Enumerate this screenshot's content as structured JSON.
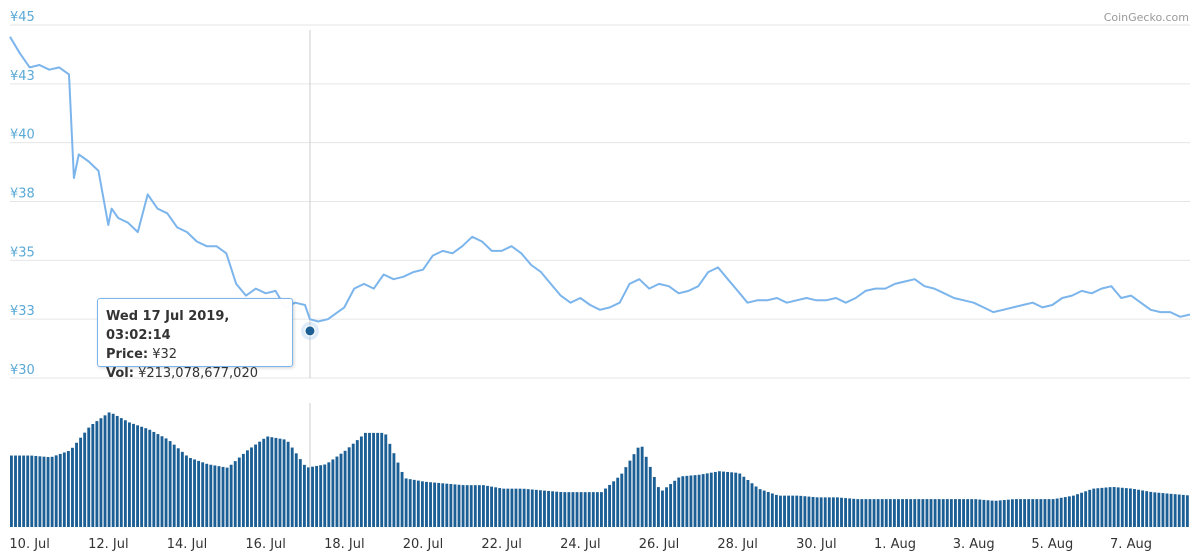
{
  "credit": "CoinGecko.com",
  "tooltip": {
    "date": "Wed 17 Jul 2019, 03:02:14",
    "price_label": "Price:",
    "price_value": "¥32",
    "vol_label": "Vol:",
    "vol_value": "¥213,078,677,020"
  },
  "colors": {
    "price_line": "#7cb5ec",
    "volume_bars": "#1c5f95",
    "tick_text": "#5aa9d6",
    "grid": "#e6e6e6",
    "marker": "#1c5f95"
  },
  "chart_data": [
    {
      "type": "line",
      "title": "",
      "xlabel": "",
      "ylabel": "",
      "x_range": [
        "2019-07-09",
        "2019-08-08"
      ],
      "ylim": [
        30,
        45
      ],
      "y_ticks": [
        "¥30",
        "¥33",
        "¥35",
        "¥38",
        "¥40",
        "¥43",
        "¥45"
      ],
      "y_tick_values": [
        30,
        32.5,
        35,
        37.5,
        40,
        42.5,
        45
      ],
      "x_ticks": [
        "10. Jul",
        "12. Jul",
        "14. Jul",
        "16. Jul",
        "18. Jul",
        "20. Jul",
        "22. Jul",
        "24. Jul",
        "26. Jul",
        "28. Jul",
        "30. Jul",
        "1. Aug",
        "3. Aug",
        "5. Aug",
        "7. Aug"
      ],
      "x_tick_dates": [
        "2019-07-10",
        "2019-07-12",
        "2019-07-14",
        "2019-07-16",
        "2019-07-18",
        "2019-07-20",
        "2019-07-22",
        "2019-07-24",
        "2019-07-26",
        "2019-07-28",
        "2019-07-30",
        "2019-08-01",
        "2019-08-03",
        "2019-08-05",
        "2019-08-07"
      ],
      "grid": true,
      "legend": "none",
      "series": [
        {
          "x": [
            "2019-07-09 12:00",
            "2019-07-09 18:00",
            "2019-07-10 00:00",
            "2019-07-10 06:00",
            "2019-07-10 12:00",
            "2019-07-10 18:00",
            "2019-07-11 00:00",
            "2019-07-11 03:00",
            "2019-07-11 06:00",
            "2019-07-11 12:00",
            "2019-07-11 18:00",
            "2019-07-12 00:00",
            "2019-07-12 02:00",
            "2019-07-12 06:00",
            "2019-07-12 12:00",
            "2019-07-12 18:00",
            "2019-07-13 00:00",
            "2019-07-13 06:00",
            "2019-07-13 12:00",
            "2019-07-13 18:00",
            "2019-07-14 00:00",
            "2019-07-14 06:00",
            "2019-07-14 12:00",
            "2019-07-14 18:00",
            "2019-07-15 00:00",
            "2019-07-15 06:00",
            "2019-07-15 12:00",
            "2019-07-15 18:00",
            "2019-07-16 00:00",
            "2019-07-16 06:00",
            "2019-07-16 12:00",
            "2019-07-16 18:00",
            "2019-07-17 00:00",
            "2019-07-17 03:00",
            "2019-07-17 08:00",
            "2019-07-17 14:00",
            "2019-07-17 20:00",
            "2019-07-18 00:00",
            "2019-07-18 06:00",
            "2019-07-18 12:00",
            "2019-07-18 18:00",
            "2019-07-19 00:00",
            "2019-07-19 06:00",
            "2019-07-19 12:00",
            "2019-07-19 18:00",
            "2019-07-20 00:00",
            "2019-07-20 06:00",
            "2019-07-20 12:00",
            "2019-07-20 18:00",
            "2019-07-21 00:00",
            "2019-07-21 06:00",
            "2019-07-21 12:00",
            "2019-07-21 18:00",
            "2019-07-22 00:00",
            "2019-07-22 06:00",
            "2019-07-22 12:00",
            "2019-07-22 18:00",
            "2019-07-23 00:00",
            "2019-07-23 06:00",
            "2019-07-23 12:00",
            "2019-07-23 18:00",
            "2019-07-24 00:00",
            "2019-07-24 06:00",
            "2019-07-24 12:00",
            "2019-07-24 18:00",
            "2019-07-25 00:00",
            "2019-07-25 06:00",
            "2019-07-25 12:00",
            "2019-07-25 18:00",
            "2019-07-26 00:00",
            "2019-07-26 06:00",
            "2019-07-26 12:00",
            "2019-07-26 18:00",
            "2019-07-27 00:00",
            "2019-07-27 06:00",
            "2019-07-27 12:00",
            "2019-07-27 18:00",
            "2019-07-28 00:00",
            "2019-07-28 06:00",
            "2019-07-28 12:00",
            "2019-07-28 18:00",
            "2019-07-29 00:00",
            "2019-07-29 06:00",
            "2019-07-29 12:00",
            "2019-07-29 18:00",
            "2019-07-30 00:00",
            "2019-07-30 06:00",
            "2019-07-30 12:00",
            "2019-07-30 18:00",
            "2019-07-31 00:00",
            "2019-07-31 06:00",
            "2019-07-31 12:00",
            "2019-07-31 18:00",
            "2019-08-01 00:00",
            "2019-08-01 06:00",
            "2019-08-01 12:00",
            "2019-08-01 18:00",
            "2019-08-02 00:00",
            "2019-08-02 06:00",
            "2019-08-02 12:00",
            "2019-08-02 18:00",
            "2019-08-03 00:00",
            "2019-08-03 06:00",
            "2019-08-03 12:00",
            "2019-08-03 18:00",
            "2019-08-04 00:00",
            "2019-08-04 06:00",
            "2019-08-04 12:00",
            "2019-08-04 18:00",
            "2019-08-05 00:00",
            "2019-08-05 06:00",
            "2019-08-05 12:00",
            "2019-08-05 18:00",
            "2019-08-06 00:00",
            "2019-08-06 06:00",
            "2019-08-06 12:00",
            "2019-08-06 18:00",
            "2019-08-07 00:00",
            "2019-08-07 06:00",
            "2019-08-07 12:00",
            "2019-08-07 18:00",
            "2019-08-08 00:00",
            "2019-08-08 06:00",
            "2019-08-08 12:00"
          ],
          "y": [
            44.5,
            43.8,
            43.2,
            43.3,
            43.1,
            43.2,
            42.9,
            38.5,
            39.5,
            39.2,
            38.8,
            36.5,
            37.2,
            36.8,
            36.6,
            36.2,
            37.8,
            37.2,
            37.0,
            36.4,
            36.2,
            35.8,
            35.6,
            35.6,
            35.3,
            34.0,
            33.5,
            33.8,
            33.6,
            33.7,
            33.0,
            33.2,
            33.1,
            32.5,
            32.4,
            32.5,
            32.8,
            33.0,
            33.8,
            34.0,
            33.8,
            34.4,
            34.2,
            34.3,
            34.5,
            34.6,
            35.2,
            35.4,
            35.3,
            35.6,
            36.0,
            35.8,
            35.4,
            35.4,
            35.6,
            35.3,
            34.8,
            34.5,
            34.0,
            33.5,
            33.2,
            33.4,
            33.1,
            32.9,
            33.0,
            33.2,
            34.0,
            34.2,
            33.8,
            34.0,
            33.9,
            33.6,
            33.7,
            33.9,
            34.5,
            34.7,
            34.2,
            33.7,
            33.2,
            33.3,
            33.3,
            33.4,
            33.2,
            33.3,
            33.4,
            33.3,
            33.3,
            33.4,
            33.2,
            33.4,
            33.7,
            33.8,
            33.8,
            34.0,
            34.1,
            34.2,
            33.9,
            33.8,
            33.6,
            33.4,
            33.3,
            33.2,
            33.0,
            32.8,
            32.9,
            33.0,
            33.1,
            33.2,
            33.0,
            33.1,
            33.4,
            33.5,
            33.7,
            33.6,
            33.8,
            33.9,
            33.4,
            33.5,
            33.2,
            32.9,
            32.8,
            32.8,
            32.6,
            32.7
          ]
        }
      ],
      "tooltip_point": {
        "x": "2019-07-17 03:02:14",
        "y": 32
      }
    },
    {
      "type": "bar",
      "title": "",
      "xlabel": "",
      "ylabel": "",
      "x_range": [
        "2019-07-09",
        "2019-08-08"
      ],
      "grid": false,
      "legend": "none",
      "series": [
        {
          "x": [
            "2019-07-09 12:00",
            "2019-07-10 00:00",
            "2019-07-10 12:00",
            "2019-07-11 00:00",
            "2019-07-11 12:00",
            "2019-07-12 00:00",
            "2019-07-12 12:00",
            "2019-07-13 00:00",
            "2019-07-13 12:00",
            "2019-07-14 00:00",
            "2019-07-14 12:00",
            "2019-07-15 00:00",
            "2019-07-15 12:00",
            "2019-07-16 00:00",
            "2019-07-16 12:00",
            "2019-07-17 00:00",
            "2019-07-17 12:00",
            "2019-07-18 00:00",
            "2019-07-18 12:00",
            "2019-07-19 00:00",
            "2019-07-19 12:00",
            "2019-07-20 00:00",
            "2019-07-20 12:00",
            "2019-07-21 00:00",
            "2019-07-21 12:00",
            "2019-07-22 00:00",
            "2019-07-22 12:00",
            "2019-07-23 00:00",
            "2019-07-23 12:00",
            "2019-07-24 00:00",
            "2019-07-24 12:00",
            "2019-07-25 00:00",
            "2019-07-25 12:00",
            "2019-07-26 00:00",
            "2019-07-26 12:00",
            "2019-07-27 00:00",
            "2019-07-27 12:00",
            "2019-07-28 00:00",
            "2019-07-28 12:00",
            "2019-07-29 00:00",
            "2019-07-29 12:00",
            "2019-07-30 00:00",
            "2019-07-30 12:00",
            "2019-07-31 00:00",
            "2019-07-31 12:00",
            "2019-08-01 00:00",
            "2019-08-01 12:00",
            "2019-08-02 00:00",
            "2019-08-02 12:00",
            "2019-08-03 00:00",
            "2019-08-03 12:00",
            "2019-08-04 00:00",
            "2019-08-04 12:00",
            "2019-08-05 00:00",
            "2019-08-05 12:00",
            "2019-08-06 00:00",
            "2019-08-06 12:00",
            "2019-08-07 00:00",
            "2019-08-07 12:00",
            "2019-08-08 00:00",
            "2019-08-08 12:00"
          ],
          "values": [
            2.05,
            2.05,
            2.0,
            2.2,
            2.9,
            3.3,
            3.0,
            2.8,
            2.5,
            2.0,
            1.8,
            1.7,
            2.2,
            2.6,
            2.5,
            1.7,
            1.8,
            2.2,
            2.7,
            2.7,
            1.4,
            1.3,
            1.25,
            1.2,
            1.2,
            1.1,
            1.1,
            1.05,
            1.0,
            1.0,
            1.0,
            1.5,
            2.4,
            1.0,
            1.45,
            1.5,
            1.6,
            1.55,
            1.1,
            0.9,
            0.9,
            0.85,
            0.85,
            0.8,
            0.8,
            0.8,
            0.8,
            0.8,
            0.8,
            0.8,
            0.75,
            0.8,
            0.8,
            0.8,
            0.9,
            1.1,
            1.15,
            1.1,
            1.0,
            0.95,
            0.9
          ]
        }
      ]
    }
  ]
}
